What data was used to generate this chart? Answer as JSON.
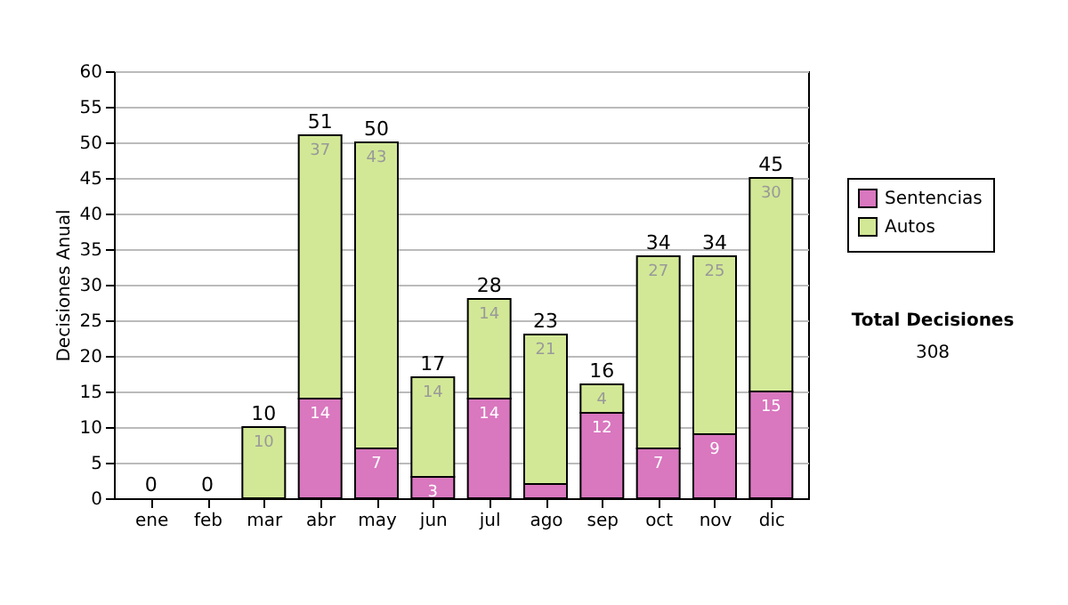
{
  "chart_data": {
    "type": "bar",
    "stacked": true,
    "ylabel": "Decisiones Anual",
    "categories": [
      "ene",
      "feb",
      "mar",
      "abr",
      "may",
      "jun",
      "jul",
      "ago",
      "sep",
      "oct",
      "nov",
      "dic"
    ],
    "series": [
      {
        "name": "Sentencias",
        "color": "#d977bf",
        "values": [
          0,
          0,
          0,
          14,
          7,
          3,
          14,
          2,
          12,
          7,
          9,
          15
        ],
        "value_labels": [
          null,
          null,
          null,
          "14",
          "7",
          "3",
          "14",
          null,
          "12",
          "7",
          "9",
          "15"
        ]
      },
      {
        "name": "Autos",
        "color": "#d2e896",
        "values": [
          0,
          0,
          10,
          37,
          43,
          14,
          14,
          21,
          4,
          27,
          25,
          30
        ],
        "value_labels": [
          null,
          null,
          "10",
          "37",
          "43",
          "14",
          "14",
          "21",
          "4",
          "27",
          "25",
          "30"
        ]
      }
    ],
    "totals": [
      "0",
      "0",
      "10",
      "51",
      "50",
      "17",
      "28",
      "23",
      "16",
      "34",
      "34",
      "45"
    ],
    "ylim": [
      0,
      60
    ],
    "yticks": [
      0,
      5,
      10,
      15,
      20,
      25,
      30,
      35,
      40,
      45,
      50,
      55,
      60
    ],
    "grid": "y",
    "legend": "right",
    "annotations": [
      "Total Decisiones",
      "308"
    ]
  }
}
